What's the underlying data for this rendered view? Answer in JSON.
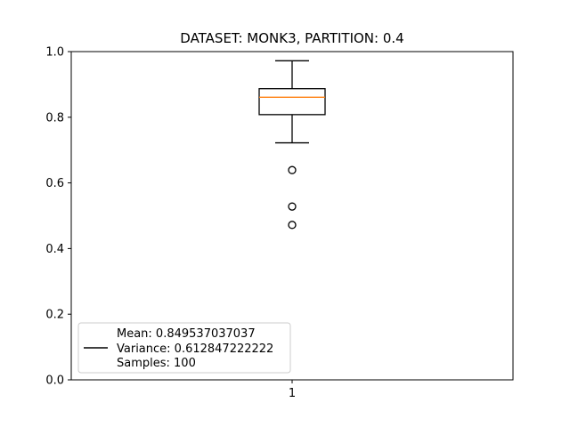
{
  "chart_data": {
    "type": "box",
    "title": "DATASET: MONK3, PARTITION: 0.4",
    "xlabel": "",
    "ylabel": "",
    "categories": [
      "1"
    ],
    "ylim": [
      0.0,
      1.0
    ],
    "yticks": [
      0.0,
      0.2,
      0.4,
      0.6,
      0.8,
      1.0
    ],
    "ytick_labels": [
      "0.0",
      "0.2",
      "0.4",
      "0.6",
      "0.8",
      "1.0"
    ],
    "box": {
      "whisker_low": 0.722,
      "q1": 0.808,
      "median": 0.861,
      "q3": 0.887,
      "whisker_high": 0.972,
      "outliers": [
        0.639,
        0.528,
        0.472
      ]
    },
    "legend": {
      "placement": "lower-left",
      "lines": [
        "Mean: 0.849537037037",
        "Variance: 0.612847222222",
        "Samples: 100"
      ]
    },
    "colors": {
      "box": "#000000",
      "median": "#ff7f0e",
      "legend_border": "#cccccc"
    },
    "grid": false
  }
}
